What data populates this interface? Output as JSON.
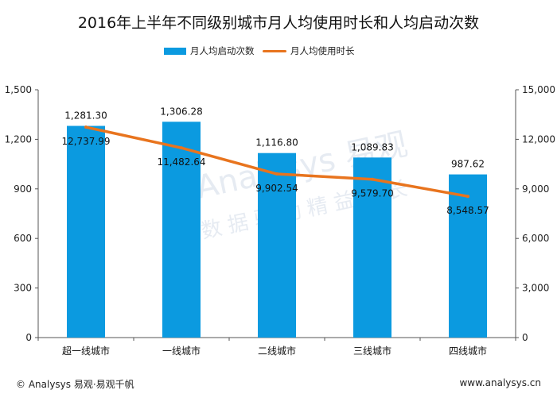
{
  "chart_data": {
    "type": "bar+line",
    "title": "2016年上半年不同级别城市月人均使用时长和人均启动次数",
    "categories": [
      "超一线城市",
      "一线城市",
      "二线城市",
      "三线城市",
      "四线城市"
    ],
    "series": [
      {
        "name": "月人均启动次数",
        "type": "bar",
        "axis": "left",
        "color": "#0b9ae0",
        "values": [
          1281.3,
          1306.28,
          1116.8,
          1089.83,
          987.62
        ],
        "labels": [
          "1,281.30",
          "1,306.28",
          "1,116.80",
          "1,089.83",
          "987.62"
        ]
      },
      {
        "name": "月人均使用时长",
        "type": "line",
        "axis": "right",
        "color": "#e8741e",
        "values": [
          12737.99,
          11482.64,
          9902.54,
          9579.7,
          8548.57
        ],
        "labels": [
          "12,737.99",
          "11,482.64",
          "9,902.54",
          "9,579.70",
          "8,548.57"
        ]
      }
    ],
    "left_axis": {
      "ylim": [
        0,
        1500
      ],
      "ticks": [
        "0",
        "300",
        "600",
        "900",
        "1,200",
        "1,500"
      ]
    },
    "right_axis": {
      "ylim": [
        0,
        15000
      ],
      "ticks": [
        "0",
        "3,000",
        "6,000",
        "9,000",
        "12,000",
        "15,000"
      ]
    },
    "legend_position": "top-center",
    "grid": false
  },
  "watermark": {
    "brand": "Analysys 易观",
    "slogan": "数据驱动精益成长"
  },
  "footer": {
    "left": "© Analysys 易观·易观千帆",
    "right": "www.analysys.cn"
  }
}
